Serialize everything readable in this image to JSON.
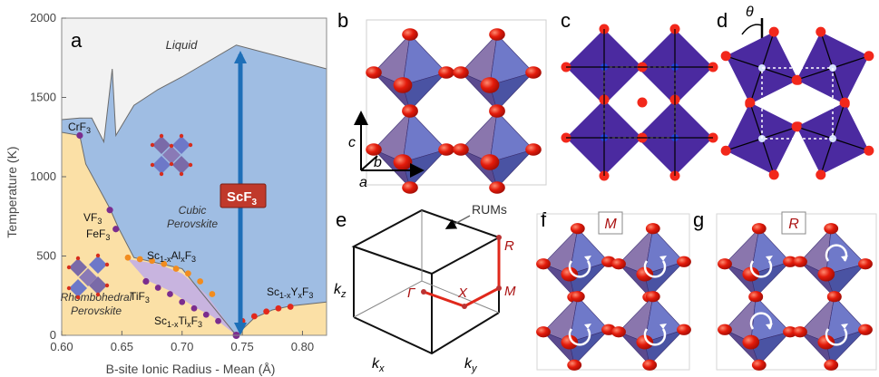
{
  "panel_labels": {
    "a": "a",
    "b": "b",
    "c": "c",
    "d": "d",
    "e": "e",
    "f": "f",
    "g": "g"
  },
  "chart_data": {
    "type": "area",
    "xlabel": "B-site Ionic Radius - Mean (Å)",
    "ylabel": "Temperature (K)",
    "xlim": [
      0.6,
      0.82
    ],
    "ylim": [
      0,
      2000
    ],
    "xticks": [
      "0.60",
      "0.65",
      "0.70",
      "0.75",
      "0.80"
    ],
    "xtick_values": [
      0.6,
      0.65,
      0.7,
      0.75,
      0.8
    ],
    "yticks": [
      "0",
      "500",
      "1000",
      "1500",
      "2000"
    ],
    "ytick_values": [
      0,
      500,
      1000,
      1500,
      2000
    ],
    "regions": {
      "liquid": "Liquid",
      "cubic_1": "Cubic",
      "cubic_2": "Perovskite",
      "rhombo_1": "Rhombohedral",
      "rhombo_2": "Perovskite"
    },
    "colors": {
      "liquid": "#f2f2f2",
      "cubic": "#9fbde3",
      "rhombohedral": "#fbe0a6",
      "alloy": "#c8b4df",
      "boundary": "#5a5a5a",
      "arrow": "#1e6fb8",
      "label_box": "#c0392b"
    },
    "melting_curve": {
      "x": [
        0.6,
        0.615,
        0.625,
        0.635,
        0.642,
        0.645,
        0.66,
        0.68,
        0.7,
        0.745,
        0.82
      ],
      "y": [
        1360,
        1370,
        1370,
        1220,
        1680,
        1260,
        1450,
        1550,
        1630,
        1830,
        1680
      ]
    },
    "phase_boundary": {
      "x": [
        0.6,
        0.615,
        0.62,
        0.64,
        0.647,
        0.66,
        0.7,
        0.745
      ],
      "y": [
        1280,
        1260,
        1080,
        800,
        680,
        490,
        420,
        0
      ]
    },
    "alloy_upper": {
      "x": [
        0.655,
        0.68,
        0.7,
        0.72,
        0.745
      ],
      "y": [
        480,
        450,
        390,
        260,
        0
      ]
    },
    "alloy_lower": {
      "x": [
        0.67,
        0.69,
        0.71,
        0.725,
        0.745
      ],
      "y": [
        350,
        280,
        180,
        120,
        0
      ]
    },
    "scy_boundary": {
      "x": [
        0.745,
        0.76,
        0.775,
        0.79,
        0.82
      ],
      "y": [
        0,
        110,
        160,
        185,
        210
      ]
    },
    "points": [
      {
        "label": "CrF3",
        "x": 0.615,
        "y": 1260
      },
      {
        "label": "VF3",
        "x": 0.64,
        "y": 790
      },
      {
        "label": "FeF3",
        "x": 0.645,
        "y": 670
      },
      {
        "label": "TiF3",
        "x": 0.67,
        "y": 340
      }
    ],
    "series": [
      {
        "name": "Sc1-xAlxF3",
        "x": [
          0.655,
          0.665,
          0.675,
          0.685,
          0.695,
          0.705,
          0.715,
          0.725
        ],
        "y": [
          490,
          480,
          470,
          450,
          420,
          390,
          340,
          260
        ]
      },
      {
        "name": "Sc1-xTixF3",
        "x": [
          0.68,
          0.69,
          0.7,
          0.71,
          0.72,
          0.73
        ],
        "y": [
          300,
          260,
          210,
          170,
          130,
          90
        ]
      },
      {
        "name": "Sc1-xYxF3",
        "x": [
          0.75,
          0.76,
          0.77,
          0.78,
          0.79
        ],
        "y": [
          90,
          120,
          150,
          170,
          180
        ]
      }
    ],
    "labels": {
      "crf3_main": "CrF",
      "vf3_main": "VF",
      "fef3_main": "FeF",
      "tif3_main": "TiF",
      "sub3": "3",
      "al_1": "Sc",
      "al_sub1": "1-x",
      "al_2": "Al",
      "al_sub2": "x",
      "al_3": "F",
      "al_sub3": "3",
      "ti_1": "Sc",
      "ti_sub1": "1-x",
      "ti_2": "Ti",
      "ti_sub2": "x",
      "ti_3": "F",
      "ti_sub3": "3",
      "y_1": "Sc",
      "y_sub1": "1-x",
      "y_2": "Y",
      "y_sub2": "x",
      "y_3": "F",
      "y_sub3": "3",
      "scf3_main": "ScF",
      "scf3_sub": "3"
    }
  },
  "panel_b_axes": {
    "c": "c",
    "b": "b",
    "a": "a"
  },
  "panel_d": {
    "theta": "θ"
  },
  "panel_e": {
    "rums": "RUMs",
    "R": "R",
    "M": "M",
    "X": "X",
    "Gamma": "Γ",
    "kx_main": "k",
    "kx_sub": "x",
    "ky_main": "k",
    "ky_sub": "y",
    "kz_main": "k",
    "kz_sub": "z"
  },
  "panel_f": {
    "box": "M"
  },
  "panel_g": {
    "box": "R"
  }
}
